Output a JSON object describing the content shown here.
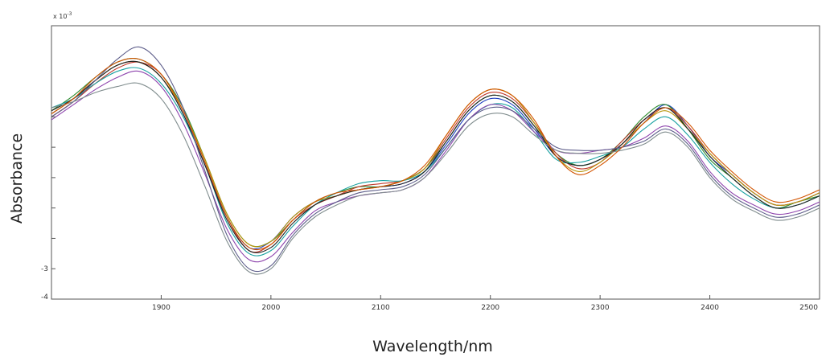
{
  "chart_data": {
    "type": "line",
    "title": "",
    "xlabel": "Wavelength/nm",
    "ylabel": "Absorbance",
    "y_exponent_label": "x 10",
    "y_exponent_power": "-3",
    "xlim": [
      1800,
      2500
    ],
    "ylim": [
      -4,
      5
    ],
    "x_ticks": [
      1900,
      2000,
      2100,
      2200,
      2300,
      2400,
      2500
    ],
    "x_tick_labels": [
      "1900",
      "2000",
      "2100",
      "2200",
      "2300",
      "2400",
      "2500"
    ],
    "y_tick_labels": [
      {
        "value": -3,
        "label": "-3"
      },
      {
        "value": -4,
        "label": "-4"
      }
    ],
    "grid": false,
    "legend": "none",
    "x": [
      1800,
      1820,
      1840,
      1860,
      1880,
      1900,
      1920,
      1940,
      1960,
      1980,
      2000,
      2020,
      2040,
      2060,
      2080,
      2100,
      2120,
      2140,
      2160,
      2180,
      2200,
      2220,
      2240,
      2260,
      2280,
      2300,
      2320,
      2340,
      2360,
      2380,
      2400,
      2420,
      2440,
      2460,
      2480,
      2500
    ],
    "series": [
      {
        "color": "#1f3fbf",
        "values": [
          2.1,
          2.6,
          3.2,
          3.7,
          3.8,
          3.3,
          2.1,
          0.4,
          -1.3,
          -2.3,
          -2.1,
          -1.3,
          -0.8,
          -0.6,
          -0.4,
          -0.3,
          -0.2,
          0.2,
          1.1,
          2.1,
          2.6,
          2.4,
          1.6,
          0.7,
          0.4,
          0.6,
          1.1,
          1.8,
          2.4,
          1.7,
          0.7,
          0.1,
          -0.5,
          -0.9,
          -0.8,
          -0.5
        ]
      },
      {
        "color": "#2e8b2e",
        "values": [
          2.2,
          2.7,
          3.3,
          3.8,
          3.9,
          3.4,
          2.3,
          0.6,
          -1.2,
          -2.2,
          -2.1,
          -1.4,
          -0.8,
          -0.5,
          -0.3,
          -0.3,
          -0.1,
          0.3,
          1.2,
          2.2,
          2.7,
          2.5,
          1.7,
          0.8,
          0.4,
          0.6,
          1.2,
          2.0,
          2.4,
          1.6,
          0.6,
          0.0,
          -0.6,
          -1.0,
          -0.8,
          -0.6
        ]
      },
      {
        "color": "#c0392b",
        "values": [
          2.0,
          2.5,
          3.1,
          3.6,
          3.8,
          3.4,
          2.2,
          0.5,
          -1.3,
          -2.4,
          -2.2,
          -1.4,
          -0.9,
          -0.6,
          -0.3,
          -0.2,
          -0.1,
          0.3,
          1.3,
          2.3,
          2.8,
          2.6,
          1.8,
          0.8,
          0.3,
          0.5,
          1.2,
          1.9,
          2.3,
          1.7,
          0.8,
          0.1,
          -0.5,
          -0.9,
          -0.8,
          -0.5
        ]
      },
      {
        "color": "#16a0a0",
        "values": [
          2.3,
          2.6,
          3.1,
          3.5,
          3.6,
          3.1,
          2.0,
          0.4,
          -1.5,
          -2.5,
          -2.4,
          -1.6,
          -0.9,
          -0.5,
          -0.2,
          -0.1,
          -0.1,
          0.2,
          1.0,
          1.9,
          2.4,
          2.3,
          1.5,
          0.6,
          0.5,
          0.7,
          1.0,
          1.6,
          2.0,
          1.4,
          0.5,
          -0.2,
          -0.7,
          -1.0,
          -0.9,
          -0.6
        ]
      },
      {
        "color": "#8e44ad",
        "values": [
          1.9,
          2.4,
          2.9,
          3.3,
          3.5,
          3.0,
          1.8,
          0.1,
          -1.7,
          -2.7,
          -2.6,
          -1.8,
          -1.1,
          -0.8,
          -0.6,
          -0.5,
          -0.4,
          0.0,
          0.9,
          1.9,
          2.4,
          2.2,
          1.5,
          0.9,
          0.8,
          0.9,
          1.0,
          1.3,
          1.7,
          1.2,
          0.2,
          -0.5,
          -0.9,
          -1.2,
          -1.1,
          -0.8
        ]
      },
      {
        "color": "#b7950b",
        "values": [
          2.1,
          2.6,
          3.2,
          3.7,
          3.8,
          3.3,
          2.2,
          0.6,
          -1.2,
          -2.2,
          -2.1,
          -1.3,
          -0.8,
          -0.6,
          -0.4,
          -0.3,
          -0.1,
          0.3,
          1.4,
          2.4,
          2.9,
          2.7,
          1.8,
          0.7,
          0.2,
          0.5,
          1.1,
          1.8,
          2.2,
          1.6,
          0.8,
          0.1,
          -0.5,
          -0.9,
          -0.8,
          -0.5
        ]
      },
      {
        "color": "#222222",
        "values": [
          2.2,
          2.6,
          3.2,
          3.7,
          3.8,
          3.3,
          2.1,
          0.4,
          -1.4,
          -2.4,
          -2.3,
          -1.5,
          -0.9,
          -0.6,
          -0.4,
          -0.3,
          -0.2,
          0.2,
          1.2,
          2.2,
          2.7,
          2.5,
          1.7,
          0.7,
          0.4,
          0.6,
          1.1,
          1.9,
          2.3,
          1.6,
          0.7,
          0.0,
          -0.6,
          -1.0,
          -0.9,
          -0.6
        ]
      },
      {
        "color": "#5d5d8a",
        "values": [
          2.0,
          2.5,
          3.2,
          3.9,
          4.3,
          3.7,
          2.3,
          0.2,
          -1.9,
          -3.0,
          -2.9,
          -1.9,
          -1.2,
          -0.8,
          -0.5,
          -0.4,
          -0.3,
          0.1,
          1.0,
          1.9,
          2.3,
          2.2,
          1.6,
          1.0,
          0.9,
          0.9,
          1.0,
          1.2,
          1.6,
          1.1,
          0.1,
          -0.6,
          -1.0,
          -1.3,
          -1.2,
          -0.9
        ]
      },
      {
        "color": "#7f8c8d",
        "values": [
          2.3,
          2.5,
          2.8,
          3.0,
          3.1,
          2.6,
          1.4,
          -0.3,
          -2.1,
          -3.1,
          -3.0,
          -2.0,
          -1.3,
          -0.9,
          -0.6,
          -0.5,
          -0.4,
          0.0,
          0.8,
          1.7,
          2.1,
          2.0,
          1.4,
          0.9,
          0.8,
          0.8,
          0.9,
          1.1,
          1.5,
          1.0,
          0.0,
          -0.7,
          -1.1,
          -1.4,
          -1.3,
          -1.0
        ]
      },
      {
        "color": "#d35400",
        "values": [
          2.1,
          2.6,
          3.3,
          3.8,
          3.9,
          3.4,
          2.2,
          0.5,
          -1.3,
          -2.3,
          -2.2,
          -1.4,
          -0.8,
          -0.5,
          -0.4,
          -0.3,
          -0.1,
          0.4,
          1.4,
          2.4,
          2.9,
          2.7,
          1.9,
          0.7,
          0.1,
          0.4,
          1.0,
          1.8,
          2.3,
          1.8,
          0.9,
          0.2,
          -0.4,
          -0.8,
          -0.7,
          -0.4
        ]
      }
    ]
  }
}
